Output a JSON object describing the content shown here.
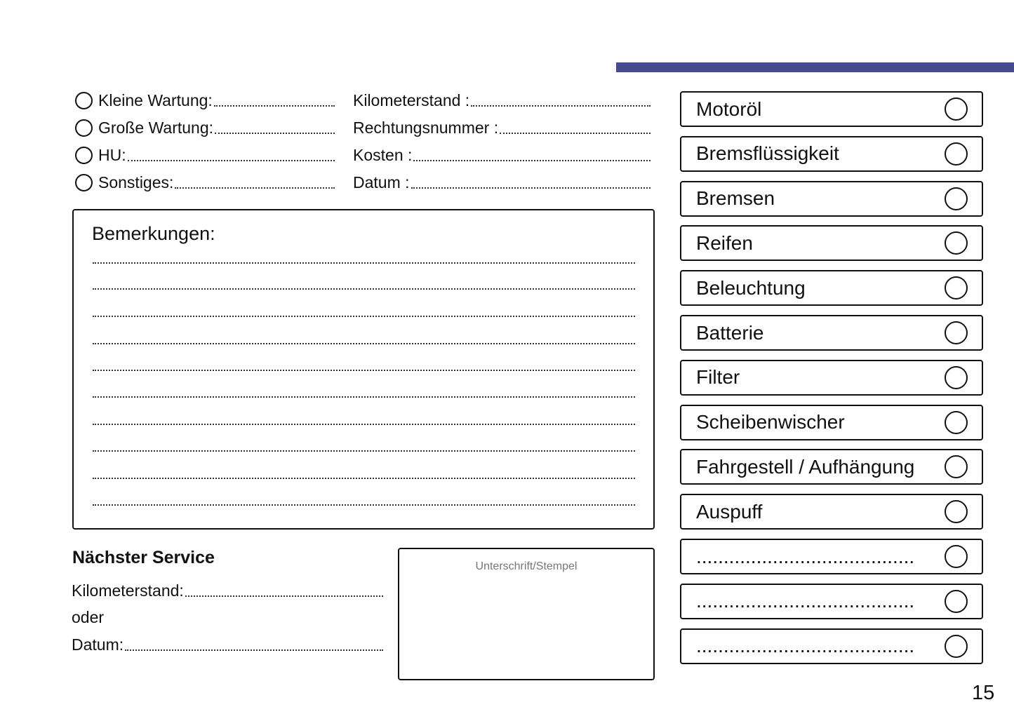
{
  "header": {
    "accent_color": "#454b8c"
  },
  "service_types": [
    {
      "label": "Kleine Wartung:"
    },
    {
      "label": "Große Wartung:"
    },
    {
      "label": "HU:"
    },
    {
      "label": "Sonstiges:"
    }
  ],
  "details": [
    {
      "label": "Kilometerstand :"
    },
    {
      "label": "Rechtungsnummer :"
    },
    {
      "label": "Kosten :"
    },
    {
      "label": "Datum :"
    }
  ],
  "remarks": {
    "title": "Bemerkungen:"
  },
  "next_service": {
    "title": "Nächster Service",
    "km_label": "Kilometerstand:",
    "or_label": "oder",
    "date_label": "Datum:"
  },
  "signature": {
    "label": "Unterschrift/Stempel"
  },
  "checklist": [
    "Motoröl",
    "Bremsflüssigkeit",
    "Bremsen",
    "Reifen",
    "Beleuchtung",
    "Batterie",
    "Filter",
    "Scheibenwischer",
    "Fahrgestell / Aufhängung",
    "Auspuff",
    "........................................",
    "........................................",
    "........................................"
  ],
  "page_number": "15"
}
